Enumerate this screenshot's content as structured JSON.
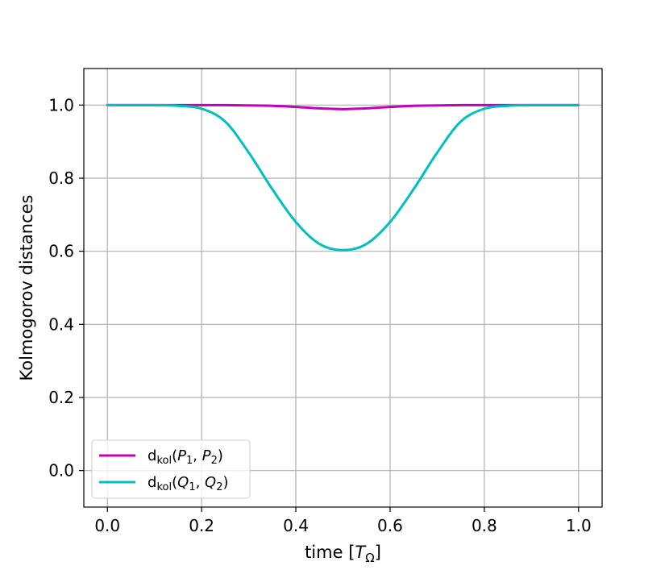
{
  "chart_data": {
    "type": "line",
    "title": "",
    "xlabel": {
      "prefix": "time [",
      "symbol": "T",
      "subscript": "Ω",
      "suffix": "]"
    },
    "ylabel": "Kolmogorov distances",
    "xlim": [
      -0.05,
      1.05
    ],
    "ylim": [
      -0.1,
      1.1
    ],
    "xticks": [
      0.0,
      0.2,
      0.4,
      0.6,
      0.8,
      1.0
    ],
    "yticks": [
      0.0,
      0.2,
      0.4,
      0.6,
      0.8,
      1.0
    ],
    "xtick_labels": [
      "0.0",
      "0.2",
      "0.4",
      "0.6",
      "0.8",
      "1.0"
    ],
    "ytick_labels": [
      "0.0",
      "0.2",
      "0.4",
      "0.6",
      "0.8",
      "1.0"
    ],
    "grid": true,
    "legend_position": "lower-left",
    "x": [
      0.0,
      0.05,
      0.1,
      0.15,
      0.2,
      0.25,
      0.3,
      0.35,
      0.4,
      0.45,
      0.5,
      0.55,
      0.6,
      0.65,
      0.7,
      0.75,
      0.8,
      0.85,
      0.9,
      0.95,
      1.0
    ],
    "series": [
      {
        "legend": {
          "base": "d",
          "sub": "kol",
          "args": [
            {
              "v": "P",
              "s": "1"
            },
            {
              "v": "P",
              "s": "2"
            }
          ]
        },
        "color": "#bf00bf",
        "values": [
          1.0,
          1.0,
          1.0,
          1.0,
          1.0,
          1.0,
          0.999,
          0.998,
          0.995,
          0.991,
          0.989,
          0.991,
          0.995,
          0.998,
          0.999,
          1.0,
          1.0,
          1.0,
          1.0,
          1.0,
          1.0
        ]
      },
      {
        "legend": {
          "base": "d",
          "sub": "kol",
          "args": [
            {
              "v": "Q",
              "s": "1"
            },
            {
              "v": "Q",
              "s": "2"
            }
          ]
        },
        "color": "#00bfbf",
        "values": [
          1.0,
          1.0,
          1.0,
          0.998,
          0.99,
          0.955,
          0.87,
          0.77,
          0.68,
          0.62,
          0.603,
          0.62,
          0.68,
          0.77,
          0.87,
          0.955,
          0.99,
          0.998,
          1.0,
          1.0,
          1.0
        ]
      }
    ]
  }
}
